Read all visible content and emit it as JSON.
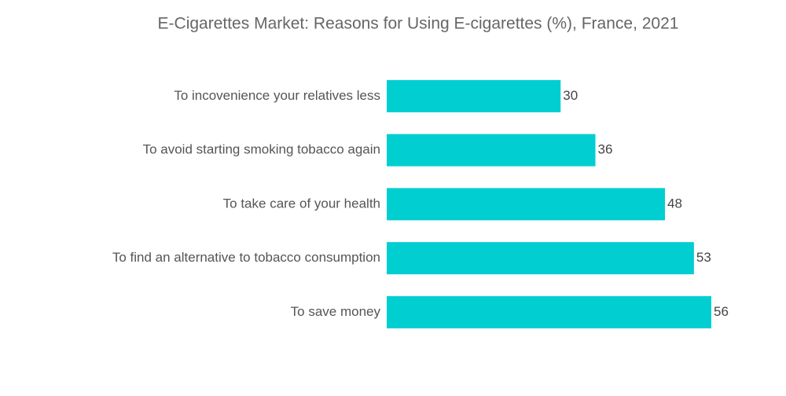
{
  "chart_data": {
    "type": "bar",
    "orientation": "horizontal",
    "title": "E-Cigarettes Market: Reasons for Using E-cigarettes (%), France, 2021",
    "categories": [
      "To incovenience your relatives less",
      "To avoid starting smoking tobacco again",
      "To take care of your health",
      "To find an alternative to tobacco consumption",
      "To save money"
    ],
    "values": [
      30,
      36,
      48,
      53,
      56
    ],
    "color": "#00ced1"
  }
}
